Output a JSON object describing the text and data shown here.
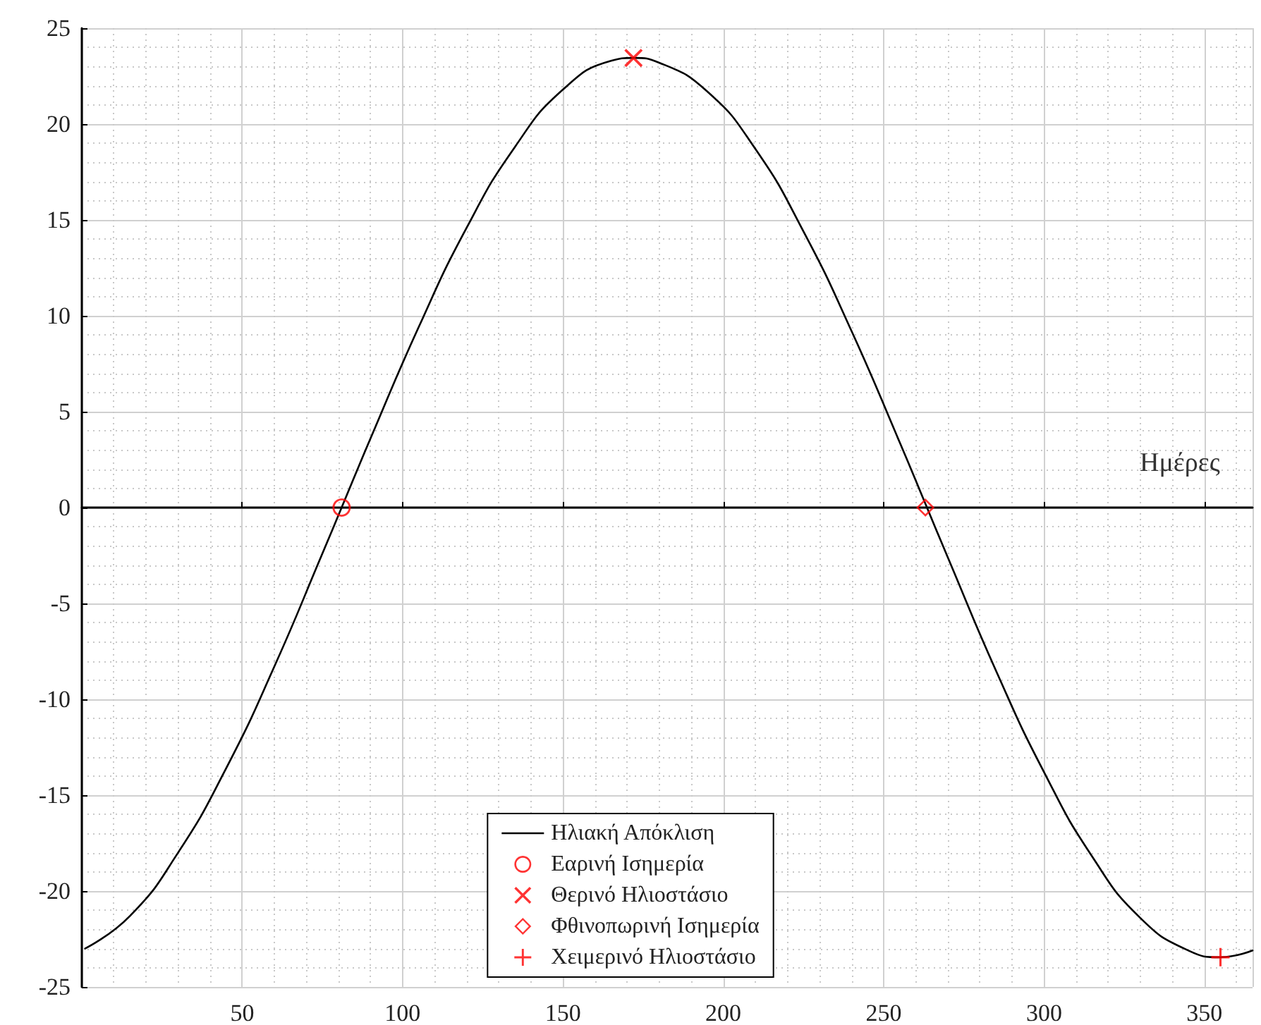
{
  "chart_data": {
    "type": "line",
    "xlabel": "Ημέρες",
    "xlim": [
      0,
      365
    ],
    "xticks": [
      50,
      100,
      150,
      200,
      250,
      300,
      350
    ],
    "ylim": [
      -25,
      25
    ],
    "yticks": [
      -25,
      -20,
      -15,
      -10,
      -5,
      0,
      5,
      10,
      15,
      20,
      25
    ],
    "grid": true,
    "legend": "bottom",
    "series": [
      {
        "name": "Ηλιακή Απόκλιση",
        "color": "#000000",
        "marker": "none",
        "line_style": "solid",
        "x": [
          1,
          15,
          30,
          45,
          60,
          75,
          81,
          90,
          105,
          120,
          135,
          150,
          165,
          172,
          180,
          195,
          210,
          225,
          240,
          255,
          263,
          270,
          285,
          300,
          315,
          330,
          345,
          355,
          365
        ],
        "values": [
          -23.0,
          -21.3,
          -18.0,
          -13.6,
          -8.3,
          -2.4,
          0,
          3.6,
          9.4,
          14.6,
          18.8,
          21.8,
          23.3,
          23.45,
          23.2,
          21.7,
          18.7,
          14.4,
          9.2,
          3.4,
          0.2,
          -2.6,
          -8.5,
          -13.8,
          -18.2,
          -21.4,
          -23.1,
          -23.45,
          -23.1
        ]
      },
      {
        "name": "Εαρινή Ισημερία",
        "type": "scatter",
        "color": "#ff0000",
        "marker": "circle",
        "x": [
          81
        ],
        "values": [
          0
        ]
      },
      {
        "name": "Θερινό Ηλιοστάσιο",
        "type": "scatter",
        "color": "#ff0000",
        "marker": "cross",
        "x": [
          172
        ],
        "values": [
          23.45
        ]
      },
      {
        "name": "Φθινοπωρινή Ισημερία",
        "type": "scatter",
        "color": "#ff0000",
        "marker": "diamond",
        "x": [
          263
        ],
        "values": [
          0
        ]
      },
      {
        "name": "Χειμερινό Ηλιοστάσιο",
        "type": "scatter",
        "color": "#ff0000",
        "marker": "plus",
        "x": [
          355
        ],
        "values": [
          -23.45
        ]
      }
    ]
  }
}
